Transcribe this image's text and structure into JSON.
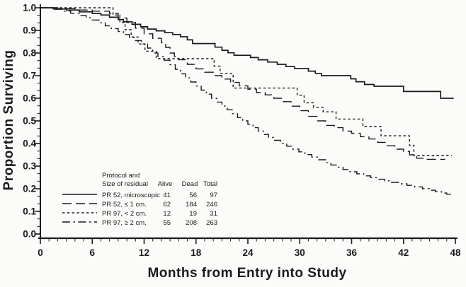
{
  "figure": {
    "kind": "kaplan-meier-survival-plot",
    "background": "#fbfbf9",
    "ink": "#1a1a1a"
  },
  "chart_data": {
    "type": "line",
    "subtype": "step_survival_curves",
    "title": "",
    "xlabel": "Months from Entry into Study",
    "ylabel": "Proportion Surviving",
    "xlim": [
      0,
      48
    ],
    "ylim": [
      0.0,
      1.0
    ],
    "grid": false,
    "x_major_ticks": [
      0,
      6,
      12,
      18,
      24,
      30,
      36,
      42,
      48
    ],
    "x_tick_labels": [
      "0",
      "6",
      "12",
      "18",
      "24",
      "30",
      "36",
      "42",
      "48"
    ],
    "x_minor_step_months": 1,
    "y_major_ticks": [
      1.0,
      0.9,
      0.8,
      0.7,
      0.6,
      0.5,
      0.4,
      0.3,
      0.2,
      0.1,
      0.0
    ],
    "y_tick_labels": [
      "1.0",
      "0.9",
      "0.8",
      "0.7",
      "0.6",
      "0.5",
      "0.4",
      "0.3",
      "0.2",
      "0.1",
      "0.0"
    ],
    "y_minor_ticks_per_major": 2,
    "legend": {
      "position": "inside-lower-left",
      "header_line1": "Protocol and",
      "header_line2": "Size of residual",
      "columns": [
        "Alive",
        "Dead",
        "Total"
      ]
    },
    "series": [
      {
        "id": "pr52-microscopic",
        "name": "PR 52, microscopic",
        "line_style": "solid",
        "alive": 41,
        "dead": 56,
        "total": 97,
        "end_month": 47.8,
        "points": [
          [
            0,
            1.0
          ],
          [
            1.5,
            0.995
          ],
          [
            3,
            0.99
          ],
          [
            4.5,
            0.982
          ],
          [
            6,
            0.975
          ],
          [
            7,
            0.968
          ],
          [
            8,
            0.958
          ],
          [
            9,
            0.948
          ],
          [
            9.6,
            0.938
          ],
          [
            10.6,
            0.927
          ],
          [
            11.6,
            0.916
          ],
          [
            12.4,
            0.906
          ],
          [
            13.4,
            0.898
          ],
          [
            14.4,
            0.89
          ],
          [
            15.3,
            0.882
          ],
          [
            16.2,
            0.872
          ],
          [
            17,
            0.858
          ],
          [
            17.6,
            0.842
          ],
          [
            20.2,
            0.826
          ],
          [
            21,
            0.812
          ],
          [
            21.7,
            0.801
          ],
          [
            22.4,
            0.79
          ],
          [
            24.3,
            0.78
          ],
          [
            25.2,
            0.77
          ],
          [
            26.3,
            0.76
          ],
          [
            27.4,
            0.75
          ],
          [
            28.4,
            0.74
          ],
          [
            29.4,
            0.732
          ],
          [
            31,
            0.72
          ],
          [
            31.8,
            0.71
          ],
          [
            32.5,
            0.7
          ],
          [
            35.9,
            0.686
          ],
          [
            36.5,
            0.673
          ],
          [
            37.5,
            0.661
          ],
          [
            38.6,
            0.653
          ],
          [
            42,
            0.63
          ],
          [
            46.3,
            0.6
          ]
        ]
      },
      {
        "id": "pr52-le-1cm",
        "name": "PR 52, ≤ 1 cm.",
        "line_style": "long_dash",
        "alive": 62,
        "dead": 184,
        "total": 246,
        "end_month": 46.8,
        "points": [
          [
            0,
            1.0
          ],
          [
            2,
            0.996
          ],
          [
            4,
            0.99
          ],
          [
            6,
            0.985
          ],
          [
            8,
            0.975
          ],
          [
            9,
            0.955
          ],
          [
            10,
            0.935
          ],
          [
            11,
            0.91
          ],
          [
            12,
            0.885
          ],
          [
            13,
            0.865
          ],
          [
            14,
            0.845
          ],
          [
            14.5,
            0.825
          ],
          [
            15,
            0.8
          ],
          [
            15.5,
            0.785
          ],
          [
            16,
            0.77
          ],
          [
            17,
            0.75
          ],
          [
            18,
            0.73
          ],
          [
            19,
            0.715
          ],
          [
            20,
            0.7
          ],
          [
            21,
            0.685
          ],
          [
            22,
            0.67
          ],
          [
            23,
            0.655
          ],
          [
            24,
            0.64
          ],
          [
            25,
            0.625
          ],
          [
            26,
            0.615
          ],
          [
            27,
            0.6
          ],
          [
            28,
            0.585
          ],
          [
            29,
            0.565
          ],
          [
            30,
            0.545
          ],
          [
            31,
            0.52
          ],
          [
            32,
            0.5
          ],
          [
            33,
            0.48
          ],
          [
            34,
            0.47
          ],
          [
            35,
            0.455
          ],
          [
            36,
            0.445
          ],
          [
            37,
            0.43
          ],
          [
            38,
            0.42
          ],
          [
            39,
            0.405
          ],
          [
            40,
            0.39
          ],
          [
            41,
            0.375
          ],
          [
            42,
            0.365
          ],
          [
            42.7,
            0.35
          ],
          [
            43.5,
            0.335
          ],
          [
            44.5,
            0.33
          ]
        ]
      },
      {
        "id": "pr97-lt-2cm",
        "name": "PR 97, < 2 cm.",
        "line_style": "short_dash",
        "alive": 12,
        "dead": 19,
        "total": 31,
        "end_month": 47.6,
        "points": [
          [
            0,
            1.0
          ],
          [
            8.4,
            0.968
          ],
          [
            9.2,
            0.935
          ],
          [
            9.8,
            0.903
          ],
          [
            10.5,
            0.871
          ],
          [
            11.3,
            0.84
          ],
          [
            12.1,
            0.808
          ],
          [
            13.4,
            0.775
          ],
          [
            20.1,
            0.742
          ],
          [
            20.8,
            0.71
          ],
          [
            22.3,
            0.645
          ],
          [
            29.7,
            0.613
          ],
          [
            30.5,
            0.58
          ],
          [
            31.6,
            0.56
          ],
          [
            32.7,
            0.54
          ],
          [
            34.2,
            0.508
          ],
          [
            37.3,
            0.475
          ],
          [
            39.4,
            0.434
          ],
          [
            42.7,
            0.392
          ],
          [
            43.2,
            0.347
          ]
        ]
      },
      {
        "id": "pr97-ge-2cm",
        "name": "PR 97, ≥ 2 cm.",
        "line_style": "dash_dot",
        "alive": 55,
        "dead": 208,
        "total": 263,
        "end_month": 47.5,
        "points": [
          [
            0,
            1.0
          ],
          [
            1.5,
            0.993
          ],
          [
            2.5,
            0.985
          ],
          [
            3.5,
            0.976
          ],
          [
            4.5,
            0.966
          ],
          [
            5.3,
            0.956
          ],
          [
            6,
            0.946
          ],
          [
            6.8,
            0.934
          ],
          [
            7.5,
            0.92
          ],
          [
            8.2,
            0.908
          ],
          [
            9,
            0.895
          ],
          [
            9.6,
            0.882
          ],
          [
            10.3,
            0.868
          ],
          [
            11,
            0.855
          ],
          [
            11.7,
            0.84
          ],
          [
            12.4,
            0.822
          ],
          [
            13,
            0.8
          ],
          [
            13.6,
            0.785
          ],
          [
            14.3,
            0.768
          ],
          [
            15,
            0.748
          ],
          [
            15.6,
            0.728
          ],
          [
            16.2,
            0.708
          ],
          [
            16.8,
            0.69
          ],
          [
            17.4,
            0.672
          ],
          [
            18,
            0.654
          ],
          [
            18.6,
            0.636
          ],
          [
            19.2,
            0.618
          ],
          [
            19.8,
            0.6
          ],
          [
            20.4,
            0.583
          ],
          [
            21,
            0.566
          ],
          [
            21.6,
            0.549
          ],
          [
            22.2,
            0.532
          ],
          [
            22.8,
            0.515
          ],
          [
            23.4,
            0.5
          ],
          [
            24,
            0.485
          ],
          [
            24.6,
            0.47
          ],
          [
            25.2,
            0.455
          ],
          [
            25.8,
            0.44
          ],
          [
            26.4,
            0.427
          ],
          [
            27.1,
            0.414
          ],
          [
            27.8,
            0.401
          ],
          [
            28.5,
            0.388
          ],
          [
            29.2,
            0.375
          ],
          [
            29.9,
            0.363
          ],
          [
            30.6,
            0.351
          ],
          [
            31.4,
            0.34
          ],
          [
            32.2,
            0.328
          ],
          [
            33,
            0.315
          ],
          [
            33.6,
            0.305
          ],
          [
            34.3,
            0.295
          ],
          [
            35,
            0.285
          ],
          [
            35.8,
            0.275
          ],
          [
            36.6,
            0.266
          ],
          [
            37.4,
            0.257
          ],
          [
            38.2,
            0.249
          ],
          [
            39,
            0.242
          ],
          [
            39.8,
            0.235
          ],
          [
            40.6,
            0.228
          ],
          [
            41.5,
            0.222
          ],
          [
            42.4,
            0.215
          ],
          [
            43.3,
            0.208
          ],
          [
            44.2,
            0.2
          ],
          [
            45,
            0.193
          ],
          [
            45.7,
            0.187
          ],
          [
            46.4,
            0.181
          ],
          [
            47,
            0.176
          ]
        ]
      }
    ]
  }
}
